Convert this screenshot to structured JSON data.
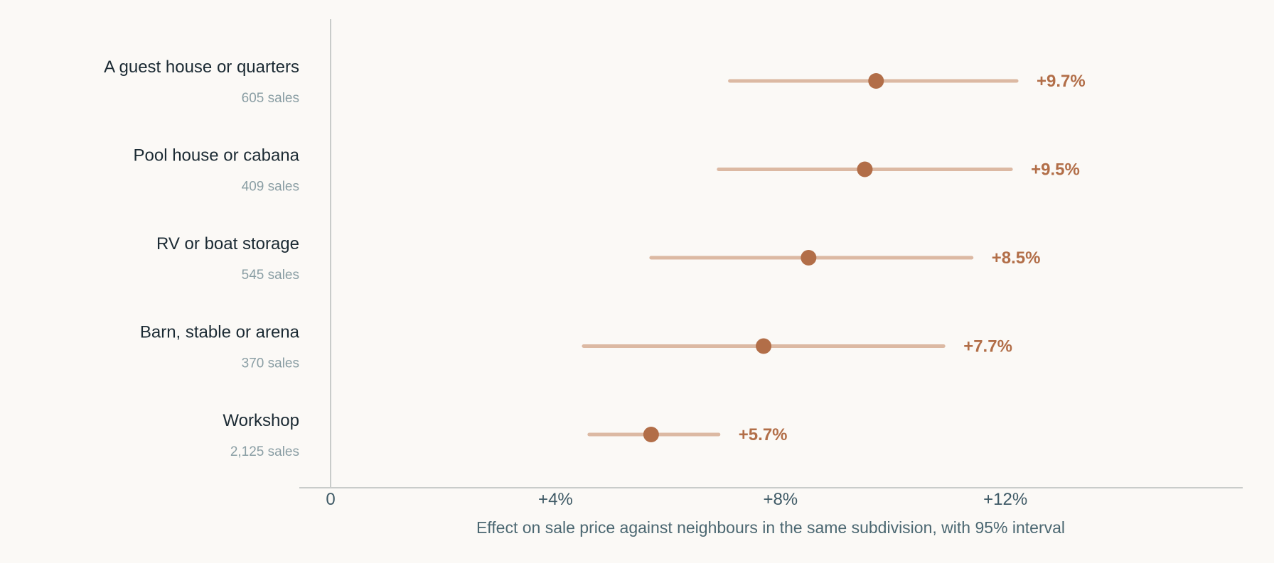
{
  "chart_data": {
    "type": "scatter",
    "xlabel": "Effect on sale price against neighbours in the same subdivision, with 95% interval",
    "xlim": [
      0,
      16
    ],
    "xticks": [
      {
        "value": 0,
        "label": "0"
      },
      {
        "value": 4,
        "label": "+4%"
      },
      {
        "value": 8,
        "label": "+8%"
      },
      {
        "value": 12,
        "label": "+12%"
      }
    ],
    "categories": [
      {
        "name": "A guest house or quarters",
        "sales": "605 sales",
        "estimate": 9.7,
        "low": 7.1,
        "high": 12.2,
        "label": "+9.7%"
      },
      {
        "name": "Pool house or cabana",
        "sales": "409 sales",
        "estimate": 9.5,
        "low": 6.9,
        "high": 12.1,
        "label": "+9.5%"
      },
      {
        "name": "RV or boat storage",
        "sales": "545 sales",
        "estimate": 8.5,
        "low": 5.7,
        "high": 11.4,
        "label": "+8.5%"
      },
      {
        "name": "Barn, stable or arena",
        "sales": "370 sales",
        "estimate": 7.7,
        "low": 4.5,
        "high": 10.9,
        "label": "+7.7%"
      },
      {
        "name": "Workshop",
        "sales": "2,125 sales",
        "estimate": 5.7,
        "low": 4.6,
        "high": 6.9,
        "label": "+5.7%"
      }
    ],
    "colors": {
      "interval": "#dcb9a3",
      "point": "#b26e48",
      "value_label": "#b26e48",
      "axis": "#c9ccca",
      "background": "#fbf9f6"
    },
    "grid": false
  }
}
